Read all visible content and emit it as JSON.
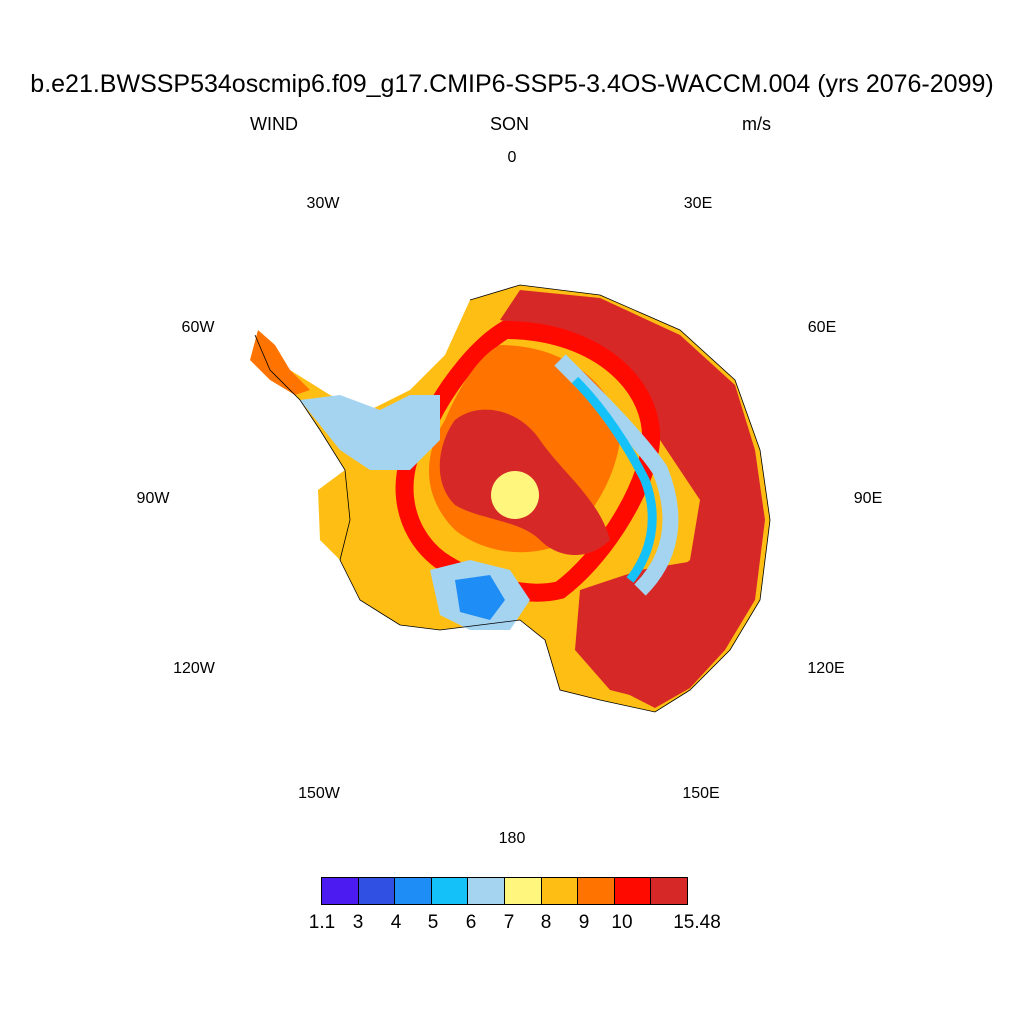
{
  "title": "b.e21.BWSSP534oscmip6.f09_g17.CMIP6-SSP5-3.4OS-WACCM.004 (yrs 2076-2099)",
  "left_string": "WIND",
  "center_string": "SON",
  "right_string": "m/s",
  "longitude_labels": {
    "lon_0": "0",
    "lon_30e": "30E",
    "lon_60e": "60E",
    "lon_90e": "90E",
    "lon_120e": "120E",
    "lon_150e": "150E",
    "lon_180": "180",
    "lon_150w": "150W",
    "lon_120w": "120W",
    "lon_90w": "90W",
    "lon_60w": "60W",
    "lon_30w": "30W"
  },
  "colorbar": {
    "colors": [
      "#4b1bf2",
      "#2f50e2",
      "#1f8df6",
      "#14c1f8",
      "#a4d4f0",
      "#fff67e",
      "#ffbe14",
      "#ff7400",
      "#ff0a00",
      "#d72828"
    ],
    "labels": [
      "1.1",
      "3",
      "4",
      "5",
      "6",
      "7",
      "8",
      "9",
      "10",
      "15.48"
    ]
  }
}
